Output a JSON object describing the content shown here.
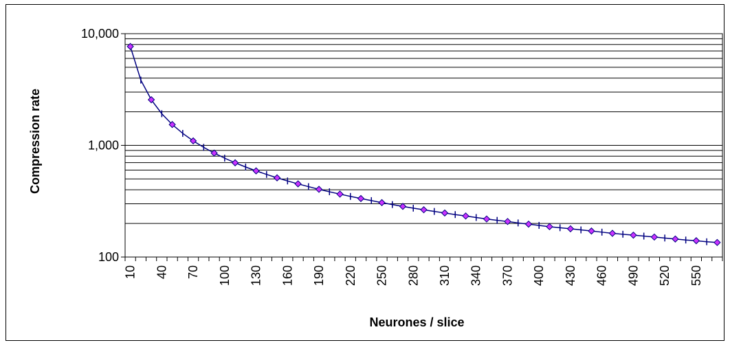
{
  "chart_data": {
    "type": "line",
    "xlabel": "Neurones / slice",
    "ylabel": "Compression rate",
    "yscale": "log",
    "ylim": [
      100,
      10000
    ],
    "xlim": [
      10,
      570
    ],
    "grid": "horizontal, major and minor",
    "legend": "none",
    "y_tick_labels": [
      "100",
      "1,000",
      "10,000"
    ],
    "y_tick_values": [
      100,
      1000,
      10000
    ],
    "x_tick_labels": [
      "10",
      "40",
      "70",
      "100",
      "130",
      "160",
      "190",
      "220",
      "250",
      "280",
      "310",
      "340",
      "370",
      "400",
      "430",
      "460",
      "490",
      "520",
      "550"
    ],
    "series": [
      {
        "color": "#CC33FF",
        "line_color": "#000080",
        "x": [
          10,
          20,
          30,
          40,
          50,
          60,
          70,
          80,
          90,
          100,
          110,
          120,
          130,
          140,
          150,
          160,
          170,
          180,
          190,
          200,
          210,
          220,
          230,
          240,
          250,
          260,
          270,
          280,
          290,
          300,
          310,
          320,
          330,
          340,
          350,
          360,
          370,
          380,
          390,
          400,
          410,
          420,
          430,
          440,
          450,
          460,
          470,
          480,
          490,
          500,
          510,
          520,
          530,
          540,
          550,
          560,
          570
        ],
        "y": [
          7680,
          3840,
          2560,
          1920,
          1536,
          1280,
          1097,
          960,
          853,
          768,
          698,
          640,
          591,
          549,
          512,
          480,
          452,
          427,
          404,
          384,
          366,
          349,
          334,
          320,
          307,
          295,
          284,
          274,
          265,
          256,
          248,
          240,
          233,
          226,
          219,
          213,
          208,
          202,
          197,
          192,
          187,
          183,
          179,
          175,
          171,
          167,
          163,
          160,
          157,
          154,
          151,
          148,
          145,
          142,
          140,
          137,
          135
        ]
      }
    ]
  }
}
